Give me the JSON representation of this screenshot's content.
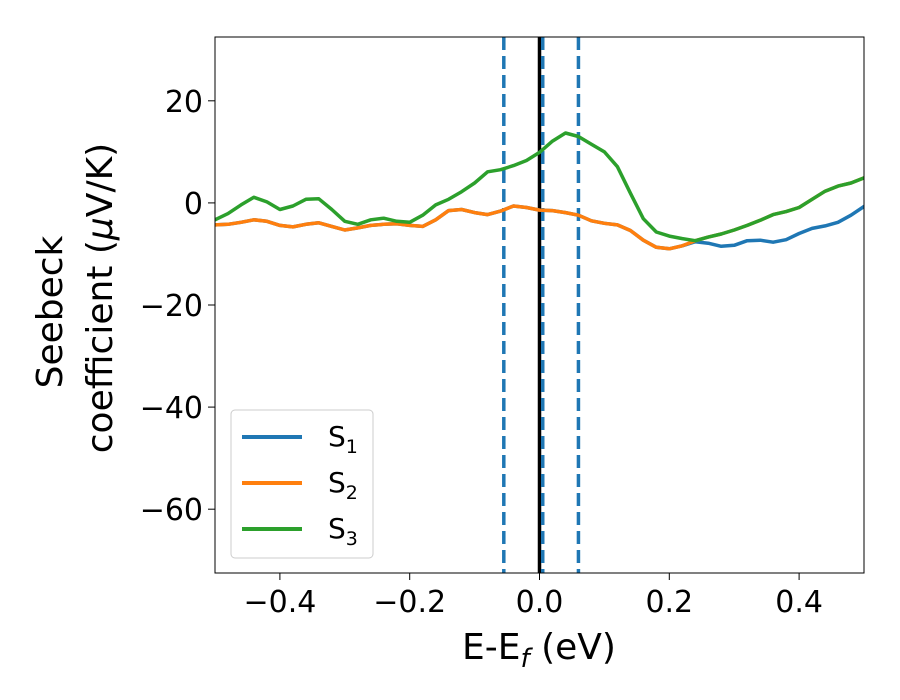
{
  "chart_data": {
    "type": "line",
    "title": "",
    "xlabel": {
      "main": "E-E",
      "subscript": "f",
      "suffix": " (eV)"
    },
    "ylabel": {
      "line1": "Seebeck",
      "line2_prefix": "coefficient  (",
      "mu": "μ",
      "line2_suffix": "V/K)"
    },
    "xlim": [
      -0.5,
      0.5
    ],
    "ylim": [
      -72.5,
      32.5
    ],
    "xticks": [
      -0.4,
      -0.2,
      0.0,
      0.2,
      0.4
    ],
    "xtick_labels": [
      "−0.4",
      "−0.2",
      "0.0",
      "0.2",
      "0.4"
    ],
    "yticks": [
      20,
      0,
      -20,
      -40,
      -60
    ],
    "ytick_labels": [
      "20",
      "0",
      "−20",
      "−40",
      "−60"
    ],
    "grid": false,
    "legend_position": "lower-left",
    "series": [
      {
        "name": "S",
        "subscript": "1",
        "color": "#1f77b4",
        "x": [
          -0.5,
          -0.48,
          -0.46,
          -0.44,
          -0.42,
          -0.4,
          -0.38,
          -0.36,
          -0.34,
          -0.32,
          -0.3,
          -0.28,
          -0.26,
          -0.24,
          -0.22,
          -0.2,
          -0.18,
          -0.16,
          -0.14,
          -0.12,
          -0.1,
          -0.08,
          -0.06,
          -0.04,
          -0.02,
          0.0,
          0.02,
          0.04,
          0.06,
          0.08,
          0.1,
          0.12,
          0.14,
          0.16,
          0.18,
          0.2,
          0.22,
          0.24,
          0.26,
          0.28,
          0.3,
          0.32,
          0.34,
          0.36,
          0.38,
          0.4,
          0.42,
          0.44,
          0.46,
          0.48,
          0.5
        ],
        "y": [
          -4.3,
          -4.2,
          -3.8,
          -3.3,
          -3.6,
          -4.4,
          -4.7,
          -4.2,
          -3.9,
          -4.6,
          -5.3,
          -4.9,
          -4.4,
          -4.2,
          -4.1,
          -4.4,
          -4.6,
          -3.3,
          -1.5,
          -1.3,
          -1.9,
          -2.3,
          -1.6,
          -0.6,
          -0.9,
          -1.4,
          -1.5,
          -1.9,
          -2.4,
          -3.5,
          -4.0,
          -4.3,
          -5.4,
          -7.3,
          -8.7,
          -9.0,
          -8.4,
          -7.6,
          -7.9,
          -8.5,
          -8.3,
          -7.4,
          -7.3,
          -7.7,
          -7.2,
          -6.0,
          -5.0,
          -4.5,
          -3.8,
          -2.4,
          -0.7
        ]
      },
      {
        "name": "S",
        "subscript": "2",
        "color": "#ff7f0e",
        "x": [
          -0.5,
          -0.48,
          -0.46,
          -0.44,
          -0.42,
          -0.4,
          -0.38,
          -0.36,
          -0.34,
          -0.32,
          -0.3,
          -0.28,
          -0.26,
          -0.24,
          -0.22,
          -0.2,
          -0.18,
          -0.16,
          -0.14,
          -0.12,
          -0.1,
          -0.08,
          -0.06,
          -0.04,
          -0.02,
          0.0,
          0.02,
          0.04,
          0.06,
          0.08,
          0.1,
          0.12,
          0.14,
          0.16,
          0.18,
          0.2,
          0.22,
          0.24,
          0.26,
          0.28,
          0.3,
          0.32,
          0.34,
          0.36,
          0.38,
          0.4,
          0.42,
          0.44,
          0.46,
          0.48,
          0.5
        ],
        "y": [
          -4.3,
          -4.2,
          -3.8,
          -3.3,
          -3.6,
          -4.4,
          -4.7,
          -4.2,
          -3.9,
          -4.6,
          -5.3,
          -4.9,
          -4.4,
          -4.2,
          -4.1,
          -4.4,
          -4.6,
          -3.3,
          -1.5,
          -1.3,
          -1.9,
          -2.3,
          -1.6,
          -0.6,
          -0.9,
          -1.4,
          -1.5,
          -1.9,
          -2.4,
          -3.5,
          -4.0,
          -4.3,
          -5.4,
          -7.3,
          -8.7,
          -9.0,
          -8.4,
          -7.4,
          -6.7,
          -6.1,
          -5.3,
          -4.4,
          -3.4,
          -2.3,
          -1.7,
          -0.9,
          0.7,
          2.3,
          3.3,
          3.9,
          4.9
        ]
      },
      {
        "name": "S",
        "subscript": "3",
        "color": "#2ca02c",
        "x": [
          -0.5,
          -0.48,
          -0.46,
          -0.44,
          -0.42,
          -0.4,
          -0.38,
          -0.36,
          -0.34,
          -0.32,
          -0.3,
          -0.28,
          -0.26,
          -0.24,
          -0.22,
          -0.2,
          -0.18,
          -0.16,
          -0.14,
          -0.12,
          -0.1,
          -0.08,
          -0.06,
          -0.04,
          -0.02,
          0.0,
          0.02,
          0.04,
          0.06,
          0.08,
          0.1,
          0.12,
          0.14,
          0.16,
          0.18,
          0.2,
          0.22,
          0.24,
          0.26,
          0.28,
          0.3,
          0.32,
          0.34,
          0.36,
          0.38,
          0.4,
          0.42,
          0.44,
          0.46,
          0.48,
          0.5
        ],
        "y": [
          -3.3,
          -2.1,
          -0.4,
          1.1,
          0.2,
          -1.3,
          -0.6,
          0.7,
          0.8,
          -1.3,
          -3.6,
          -4.2,
          -3.3,
          -3.0,
          -3.6,
          -3.8,
          -2.4,
          -0.4,
          0.7,
          2.2,
          3.9,
          6.1,
          6.5,
          7.3,
          8.3,
          9.9,
          12.1,
          13.7,
          13.0,
          11.5,
          10.0,
          7.1,
          1.9,
          -3.1,
          -5.7,
          -6.5,
          -7.0,
          -7.4,
          -6.7,
          -6.1,
          -5.3,
          -4.4,
          -3.4,
          -2.3,
          -1.7,
          -0.9,
          0.7,
          2.3,
          3.3,
          3.9,
          4.9
        ]
      }
    ],
    "vertical_lines": [
      {
        "x": 0.0,
        "style": "solid",
        "color": "#000000"
      },
      {
        "x": -0.055,
        "style": "dashed",
        "color": "#1f77b4"
      },
      {
        "x": 0.005,
        "style": "dashed",
        "color": "#1f77b4"
      },
      {
        "x": 0.06,
        "style": "dashed",
        "color": "#1f77b4"
      }
    ]
  }
}
